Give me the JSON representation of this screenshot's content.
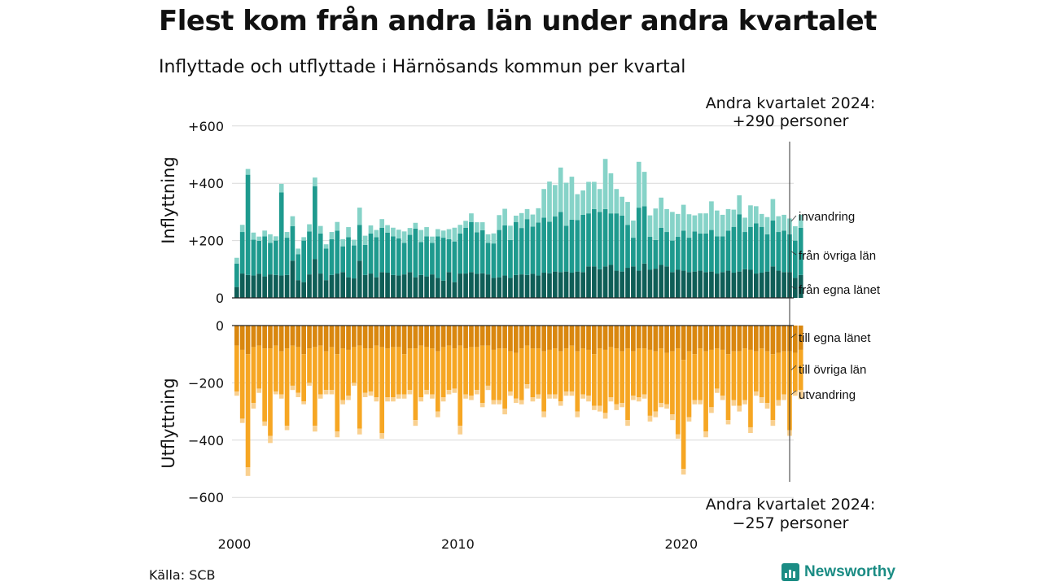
{
  "header": {
    "title": "Flest kom från andra län under andra kvartalet",
    "subtitle": "Inflyttade och utflyttade i Härnösands kommun per kvartal"
  },
  "footer": {
    "source": "Källa: SCB",
    "brand": "Newsworthy"
  },
  "colors": {
    "in_egna": "#0f5e57",
    "in_ovriga": "#1e9a8e",
    "in_invandring": "#86d3c8",
    "out_egna": "#d9870f",
    "out_ovriga": "#f6a623",
    "out_utvandring": "#f9d08f",
    "grid": "#d9d9d9",
    "brand": "#1b8c84"
  },
  "chart_data": {
    "type": "bar",
    "stacked": true,
    "x_ticks": [
      "2000",
      "2010",
      "2020"
    ],
    "top_panel": {
      "ylabel": "Inflyttning",
      "y_ticks": [
        "0",
        "+200",
        "+400",
        "+600"
      ],
      "ylim": [
        0,
        600
      ],
      "annotation": [
        "Andra kvartalet 2024:",
        "+290 personer"
      ],
      "series": [
        {
          "name": "från egna länet",
          "values": [
            38,
            85,
            80,
            78,
            84,
            75,
            82,
            80,
            78,
            80,
            130,
            62,
            55,
            82,
            135,
            85,
            62,
            80,
            85,
            90,
            72,
            68,
            130,
            80,
            85,
            72,
            90,
            88,
            80,
            78,
            82,
            90,
            72,
            80,
            75,
            82,
            70,
            60,
            90,
            55,
            85,
            85,
            90,
            84,
            86,
            82,
            70,
            72,
            78,
            70,
            80,
            82,
            80,
            84,
            78,
            88,
            86,
            92,
            90,
            92,
            88,
            92,
            90,
            110,
            110,
            100,
            110,
            115,
            95,
            92,
            105,
            110,
            95,
            120,
            98,
            102,
            115,
            110,
            90,
            98,
            95,
            90,
            92,
            95,
            90,
            92,
            85,
            90,
            95,
            88,
            92,
            100,
            98,
            85,
            88,
            92,
            110,
            95,
            90,
            90,
            70,
            80
          ]
        },
        {
          "name": "från övriga län",
          "values": [
            82,
            145,
            350,
            125,
            115,
            140,
            110,
            120,
            290,
            130,
            120,
            90,
            145,
            150,
            255,
            140,
            110,
            125,
            150,
            90,
            140,
            115,
            125,
            105,
            140,
            140,
            155,
            140,
            135,
            130,
            110,
            130,
            170,
            115,
            140,
            110,
            145,
            150,
            115,
            142,
            140,
            160,
            175,
            145,
            150,
            110,
            120,
            165,
            175,
            132,
            185,
            162,
            195,
            165,
            185,
            192,
            180,
            192,
            210,
            160,
            185,
            180,
            200,
            185,
            200,
            200,
            200,
            180,
            200,
            195,
            150,
            100,
            220,
            200,
            115,
            100,
            130,
            120,
            110,
            115,
            140,
            120,
            140,
            130,
            135,
            145,
            130,
            125,
            140,
            160,
            200,
            130,
            150,
            175,
            160,
            130,
            160,
            135,
            145,
            132,
            130,
            165
          ]
        },
        {
          "name": "invandring",
          "values": [
            20,
            25,
            20,
            25,
            15,
            20,
            30,
            15,
            30,
            20,
            35,
            20,
            12,
            25,
            30,
            26,
            15,
            25,
            30,
            25,
            35,
            20,
            60,
            32,
            28,
            25,
            30,
            26,
            30,
            30,
            40,
            24,
            20,
            42,
            32,
            22,
            25,
            25,
            35,
            48,
            30,
            24,
            30,
            35,
            28,
            30,
            35,
            52,
            58,
            50,
            22,
            52,
            35,
            42,
            50,
            100,
            140,
            110,
            155,
            150,
            150,
            90,
            85,
            110,
            95,
            80,
            175,
            140,
            85,
            66,
            80,
            60,
            160,
            120,
            75,
            110,
            105,
            80,
            100,
            80,
            90,
            82,
            56,
            70,
            70,
            100,
            90,
            75,
            75,
            60,
            66,
            50,
            75,
            60,
            45,
            60,
            75,
            55,
            55,
            55,
            50,
            45
          ]
        }
      ]
    },
    "bottom_panel": {
      "ylabel": "Utflyttning",
      "y_ticks": [
        "0",
        "−200",
        "−400",
        "−600"
      ],
      "ylim": [
        -600,
        0
      ],
      "annotation": [
        "Andra kvartalet 2024:",
        "−257 personer"
      ],
      "series": [
        {
          "name": "till egna länet",
          "values": [
            -70,
            -85,
            -100,
            -75,
            -70,
            -80,
            -80,
            -70,
            -90,
            -80,
            -70,
            -75,
            -100,
            -80,
            -75,
            -70,
            -90,
            -75,
            -100,
            -80,
            -85,
            -75,
            -70,
            -80,
            -80,
            -70,
            -75,
            -80,
            -75,
            -75,
            -100,
            -80,
            -80,
            -70,
            -75,
            -80,
            -90,
            -75,
            -70,
            -80,
            -70,
            -80,
            -75,
            -75,
            -70,
            -70,
            -85,
            -80,
            -80,
            -90,
            -95,
            -80,
            -70,
            -80,
            -80,
            -90,
            -85,
            -80,
            -90,
            -80,
            -70,
            -90,
            -80,
            -85,
            -100,
            -80,
            -85,
            -75,
            -80,
            -90,
            -80,
            -90,
            -80,
            -80,
            -85,
            -90,
            -80,
            -95,
            -90,
            -80,
            -120,
            -90,
            -100,
            -80,
            -90,
            -85,
            -80,
            -85,
            -100,
            -90,
            -90,
            -80,
            -85,
            -90,
            -80,
            -90,
            -100,
            -95,
            -90,
            -90,
            -95,
            -85
          ]
        },
        {
          "name": "till övriga län",
          "values": [
            -160,
            -240,
            -395,
            -195,
            -150,
            -255,
            -305,
            -160,
            -150,
            -270,
            -140,
            -160,
            -165,
            -120,
            -275,
            -170,
            -135,
            -150,
            -270,
            -180,
            -160,
            -125,
            -290,
            -155,
            -150,
            -180,
            -300,
            -170,
            -175,
            -165,
            -140,
            -145,
            -250,
            -180,
            -150,
            -160,
            -210,
            -175,
            -155,
            -140,
            -280,
            -160,
            -170,
            -150,
            -200,
            -140,
            -175,
            -180,
            -210,
            -140,
            -160,
            -180,
            -135,
            -170,
            -160,
            -210,
            -155,
            -160,
            -175,
            -150,
            -160,
            -210,
            -160,
            -160,
            -180,
            -200,
            -220,
            -175,
            -195,
            -180,
            -250,
            -155,
            -170,
            -160,
            -230,
            -210,
            -190,
            -180,
            -220,
            -300,
            -380,
            -230,
            -160,
            -180,
            -280,
            -200,
            -140,
            -160,
            -230,
            -170,
            -190,
            -180,
            -270,
            -140,
            -170,
            -180,
            -230,
            -165,
            -150,
            -275,
            -135,
            -140
          ]
        },
        {
          "name": "utvandring",
          "values": [
            -15,
            -15,
            -30,
            -20,
            -15,
            -15,
            -25,
            -10,
            -15,
            -15,
            -15,
            -15,
            -10,
            -10,
            -20,
            -15,
            -15,
            -15,
            -20,
            -15,
            -15,
            -10,
            -20,
            -15,
            -15,
            -15,
            -20,
            -15,
            -15,
            -15,
            -15,
            -15,
            -20,
            -15,
            -15,
            -15,
            -20,
            -15,
            -15,
            -15,
            -30,
            -15,
            -15,
            -15,
            -15,
            -15,
            -15,
            -15,
            -20,
            -15,
            -15,
            -15,
            -15,
            -15,
            -15,
            -20,
            -15,
            -15,
            -15,
            -15,
            -15,
            -20,
            -15,
            -20,
            -15,
            -20,
            -20,
            -15,
            -20,
            -15,
            -20,
            -15,
            -15,
            -15,
            -20,
            -20,
            -15,
            -15,
            -20,
            -15,
            -20,
            -15,
            -15,
            -15,
            -20,
            -20,
            -15,
            -15,
            -15,
            -20,
            -20,
            -15,
            -20,
            -15,
            -20,
            -20,
            -20,
            -20,
            -20,
            -20,
            -15,
            -32
          ]
        }
      ]
    }
  }
}
